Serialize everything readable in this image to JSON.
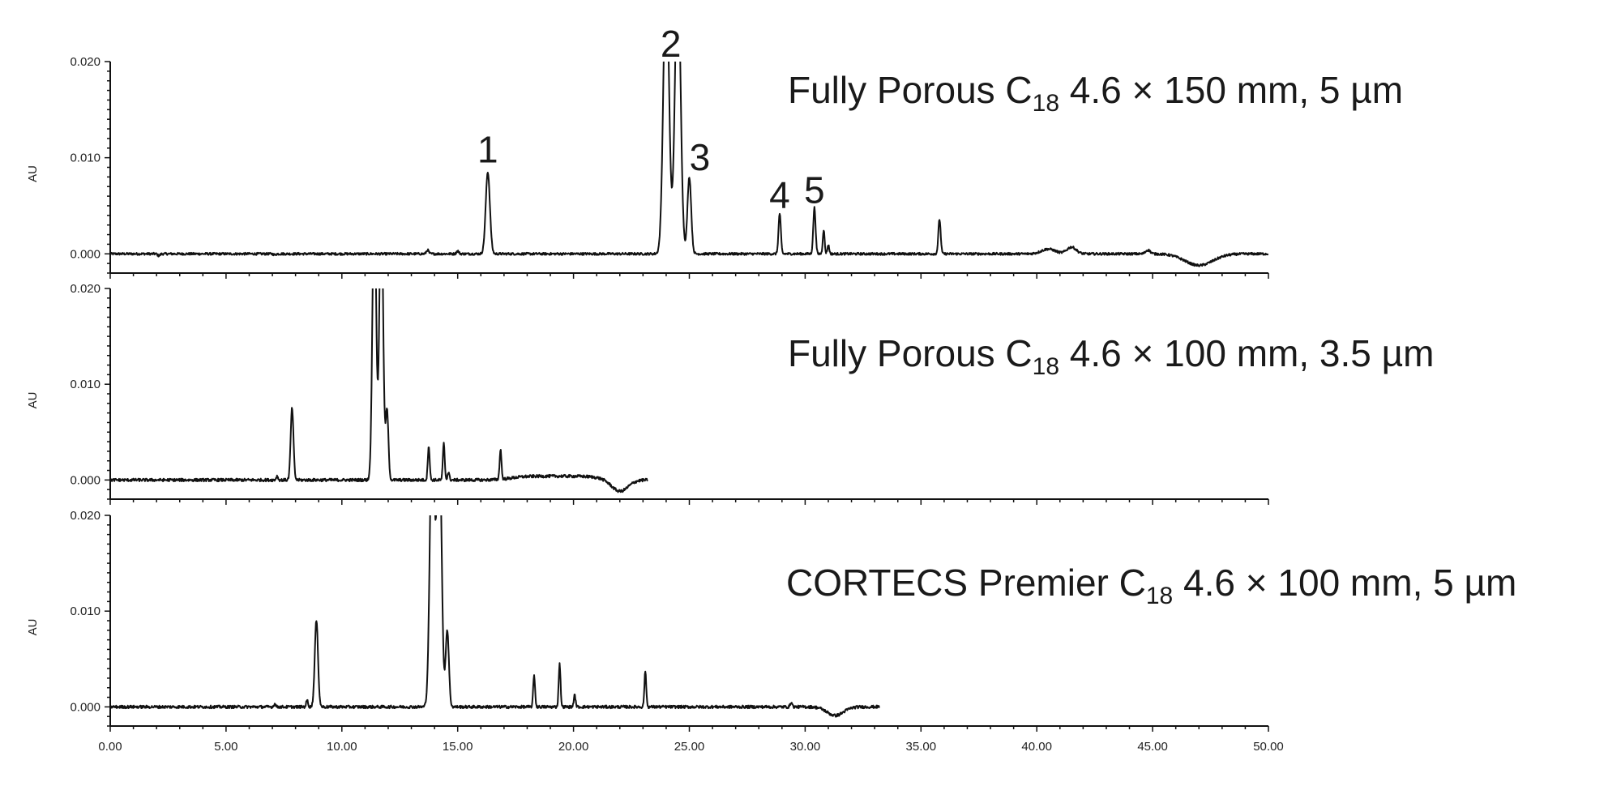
{
  "chart_data": {
    "type": "line",
    "x_axis": {
      "range": [
        0,
        50
      ],
      "ticks": [
        0,
        5,
        10,
        15,
        20,
        25,
        30,
        35,
        40,
        45,
        50
      ],
      "tick_labels": [
        "0.00",
        "5.00",
        "10.00",
        "15.00",
        "20.00",
        "25.00",
        "30.00",
        "35.00",
        "40.00",
        "45.00",
        "50.00"
      ]
    },
    "panels": [
      {
        "title": {
          "pre": "Fully Porous C",
          "sub": "18",
          "post": " 4.6 × 150 mm, 5 µm"
        },
        "ylabel": "AU",
        "ylim": [
          -0.002,
          0.02
        ],
        "yticks": [
          0.0,
          0.01,
          0.02
        ],
        "ytick_labels": [
          "0.000",
          "0.010",
          "0.020"
        ],
        "x_end": 50.0,
        "baseline_noise": 0.00012,
        "peaks": [
          {
            "x": 2.1,
            "h": -0.0002,
            "w": 0.05
          },
          {
            "x": 7.1,
            "h": -0.0001,
            "w": 0.05
          },
          {
            "x": 13.7,
            "h": 0.0004,
            "w": 0.05
          },
          {
            "x": 15.0,
            "h": 0.0003,
            "w": 0.05
          },
          {
            "x": 16.3,
            "h": 0.0085,
            "w": 0.09
          },
          {
            "x": 24.0,
            "h": 0.03,
            "w": 0.12
          },
          {
            "x": 24.5,
            "h": 0.03,
            "w": 0.12
          },
          {
            "x": 25.0,
            "h": 0.008,
            "w": 0.08
          },
          {
            "x": 28.9,
            "h": 0.0042,
            "w": 0.05
          },
          {
            "x": 30.4,
            "h": 0.0048,
            "w": 0.05
          },
          {
            "x": 30.8,
            "h": 0.0025,
            "w": 0.04
          },
          {
            "x": 31.0,
            "h": 0.0009,
            "w": 0.04
          },
          {
            "x": 35.8,
            "h": 0.0036,
            "w": 0.05
          },
          {
            "x": 40.5,
            "h": 0.0005,
            "w": 0.3
          },
          {
            "x": 41.5,
            "h": 0.0007,
            "w": 0.2
          },
          {
            "x": 44.8,
            "h": 0.0004,
            "w": 0.1
          },
          {
            "x": 47.0,
            "h": -0.0012,
            "w": 0.6
          }
        ],
        "peak_labels": [
          {
            "text": "1",
            "x": 16.3,
            "y": 0.0095
          },
          {
            "text": "2",
            "x": 24.2,
            "y": 0.0205
          },
          {
            "text": "3",
            "x": 25.45,
            "y": 0.0087
          },
          {
            "text": "4",
            "x": 28.9,
            "y": 0.0048
          },
          {
            "text": "5",
            "x": 30.4,
            "y": 0.0053
          }
        ]
      },
      {
        "title": {
          "pre": "Fully Porous C",
          "sub": "18",
          "post": " 4.6 × 100 mm, 3.5 µm"
        },
        "ylabel": "AU",
        "ylim": [
          -0.002,
          0.02
        ],
        "yticks": [
          0.0,
          0.01,
          0.02
        ],
        "ytick_labels": [
          "0.000",
          "0.010",
          "0.020"
        ],
        "x_end": 23.2,
        "baseline_noise": 0.00015,
        "peaks": [
          {
            "x": 7.2,
            "h": 0.0004,
            "w": 0.04
          },
          {
            "x": 7.85,
            "h": 0.0075,
            "w": 0.06
          },
          {
            "x": 11.4,
            "h": 0.03,
            "w": 0.08
          },
          {
            "x": 11.7,
            "h": 0.03,
            "w": 0.08
          },
          {
            "x": 11.95,
            "h": 0.0072,
            "w": 0.06
          },
          {
            "x": 13.75,
            "h": 0.0036,
            "w": 0.04
          },
          {
            "x": 14.4,
            "h": 0.0038,
            "w": 0.04
          },
          {
            "x": 14.6,
            "h": 0.0008,
            "w": 0.04
          },
          {
            "x": 16.85,
            "h": 0.0031,
            "w": 0.04
          },
          {
            "x": 22.0,
            "h": -0.0012,
            "w": 0.35
          }
        ],
        "plateaus": [
          {
            "start": 17.3,
            "end": 21.2,
            "h": 0.0004
          }
        ],
        "peak_labels": []
      },
      {
        "title": {
          "pre": "CORTECS Premier C",
          "sub": "18",
          "post": " 4.6 × 100 mm, 5 µm"
        },
        "ylabel": "AU",
        "ylim": [
          -0.002,
          0.02
        ],
        "yticks": [
          0.0,
          0.01,
          0.02
        ],
        "ytick_labels": [
          "0.000",
          "0.010",
          "0.020"
        ],
        "x_end": 33.2,
        "baseline_noise": 0.00015,
        "peaks": [
          {
            "x": 7.1,
            "h": 0.0003,
            "w": 0.04
          },
          {
            "x": 8.5,
            "h": 0.0007,
            "w": 0.04
          },
          {
            "x": 8.9,
            "h": 0.009,
            "w": 0.07
          },
          {
            "x": 13.9,
            "h": 0.03,
            "w": 0.1
          },
          {
            "x": 14.2,
            "h": 0.03,
            "w": 0.1
          },
          {
            "x": 14.55,
            "h": 0.008,
            "w": 0.07
          },
          {
            "x": 18.3,
            "h": 0.0033,
            "w": 0.04
          },
          {
            "x": 19.4,
            "h": 0.0045,
            "w": 0.04
          },
          {
            "x": 20.05,
            "h": 0.0012,
            "w": 0.04
          },
          {
            "x": 23.1,
            "h": 0.0037,
            "w": 0.04
          },
          {
            "x": 29.4,
            "h": 0.0005,
            "w": 0.04
          },
          {
            "x": 31.3,
            "h": -0.0009,
            "w": 0.35
          }
        ],
        "peak_labels": []
      }
    ]
  }
}
